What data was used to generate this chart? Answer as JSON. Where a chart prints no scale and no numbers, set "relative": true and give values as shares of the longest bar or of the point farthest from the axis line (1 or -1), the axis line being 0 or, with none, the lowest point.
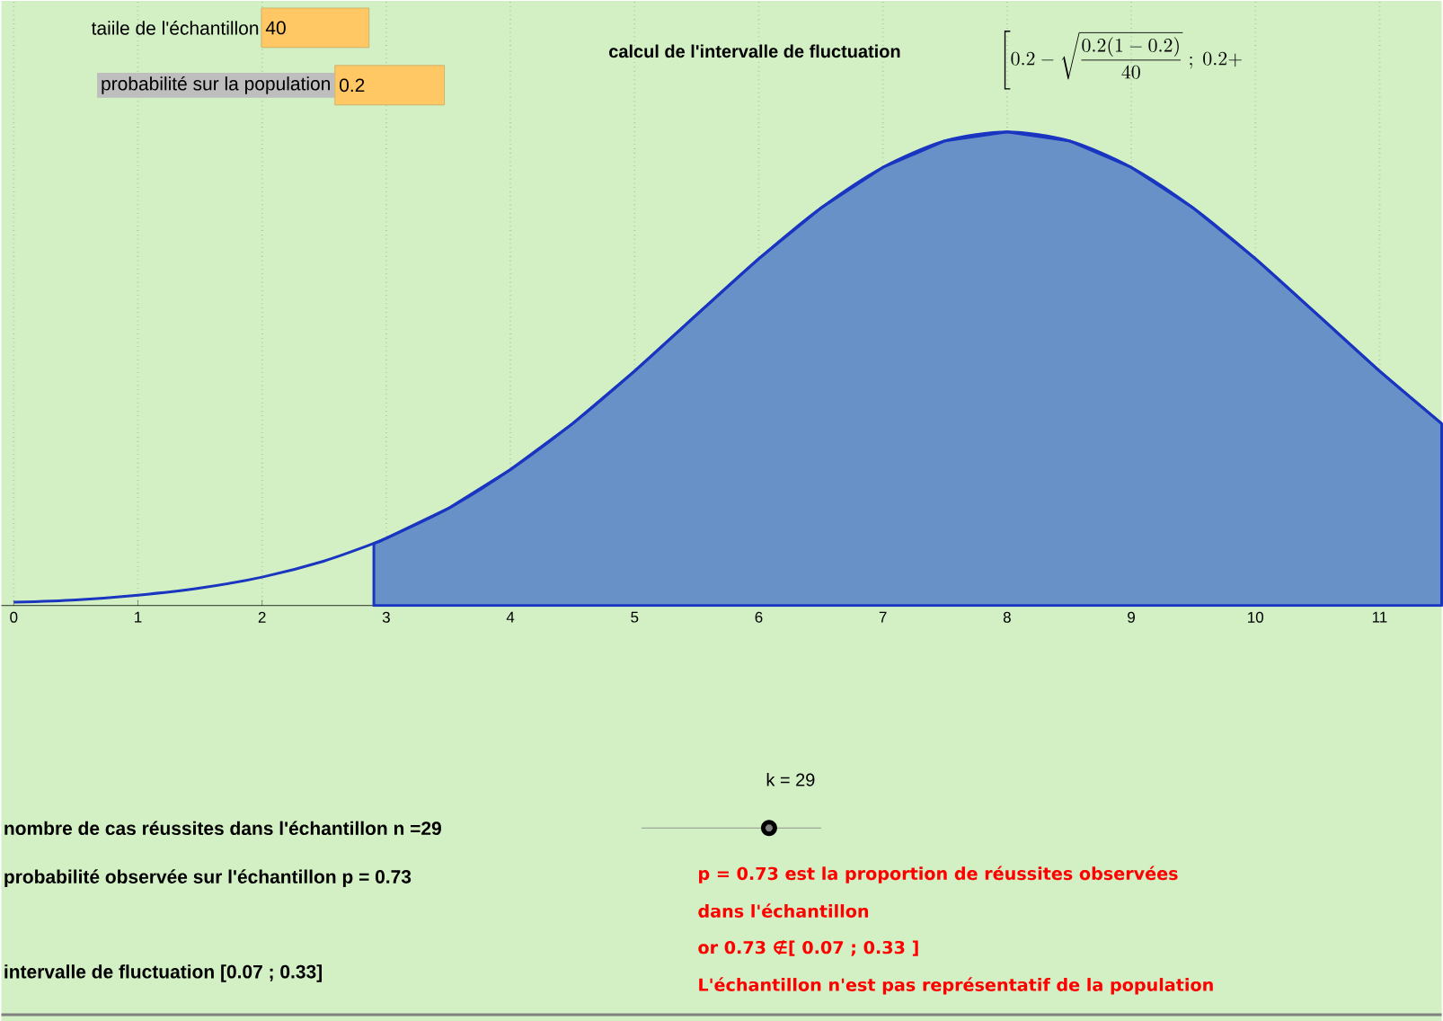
{
  "chart_data": {
    "type": "line",
    "relative": true,
    "title": "calcul de l'intervalle de fluctuation",
    "xlim": [
      -0.1,
      11.5
    ],
    "xticks": [
      0,
      1,
      2,
      3,
      4,
      5,
      6,
      7,
      8,
      9,
      10,
      11
    ],
    "grid": "x",
    "series": [
      {
        "type": "area",
        "color": "#6891c8",
        "x": [
          2.9,
          3,
          3.5,
          4,
          4.5,
          5,
          5.5,
          6,
          6.5,
          7,
          7.5,
          8,
          8.5,
          9,
          9.5,
          10,
          10.5,
          11,
          11.5
        ],
        "values": [
          0.131,
          0.142,
          0.205,
          0.287,
          0.384,
          0.495,
          0.614,
          0.732,
          0.839,
          0.925,
          0.981,
          1,
          0.981,
          0.925,
          0.839,
          0.732,
          0.614,
          0.495,
          0.384
        ]
      },
      {
        "color": "#1a35c0",
        "x": [
          0,
          0.5,
          1,
          1.5,
          2,
          2.5,
          2.9,
          3,
          3.5,
          4,
          4.5,
          5,
          5.5,
          6,
          6.5,
          7,
          7.5,
          8,
          8.5,
          9,
          9.5,
          10,
          10.5,
          11,
          11.5
        ],
        "values": [
          0.007,
          0.012,
          0.022,
          0.037,
          0.06,
          0.094,
          0.131,
          0.142,
          0.205,
          0.287,
          0.384,
          0.495,
          0.614,
          0.732,
          0.839,
          0.925,
          0.981,
          1,
          0.981,
          0.925,
          0.839,
          0.732,
          0.614,
          0.495,
          0.384
        ]
      }
    ],
    "annotations": [
      "taiile de l'échantillon",
      "40",
      "probabilité sur la population",
      "0.2",
      "\\left[0.2-\\sqrt{\\frac{0.2(1-0.2)}{40}}\\ ;\\ 0.2+\\right.",
      "k = 29",
      "nombre de cas réussites dans l'échantillon n =29",
      "probabilité observée sur l'échantillon p = 0.73",
      "intervalle de fluctuation [0.07 ; 0.33]",
      "p = 0.73 est la proportion de réussites observées",
      "dans l'échantillon",
      "or 0.73 ∉[ 0.07 ; 0.33 ]",
      "L'échantillon n'est pas représentatif de la population"
    ]
  }
}
